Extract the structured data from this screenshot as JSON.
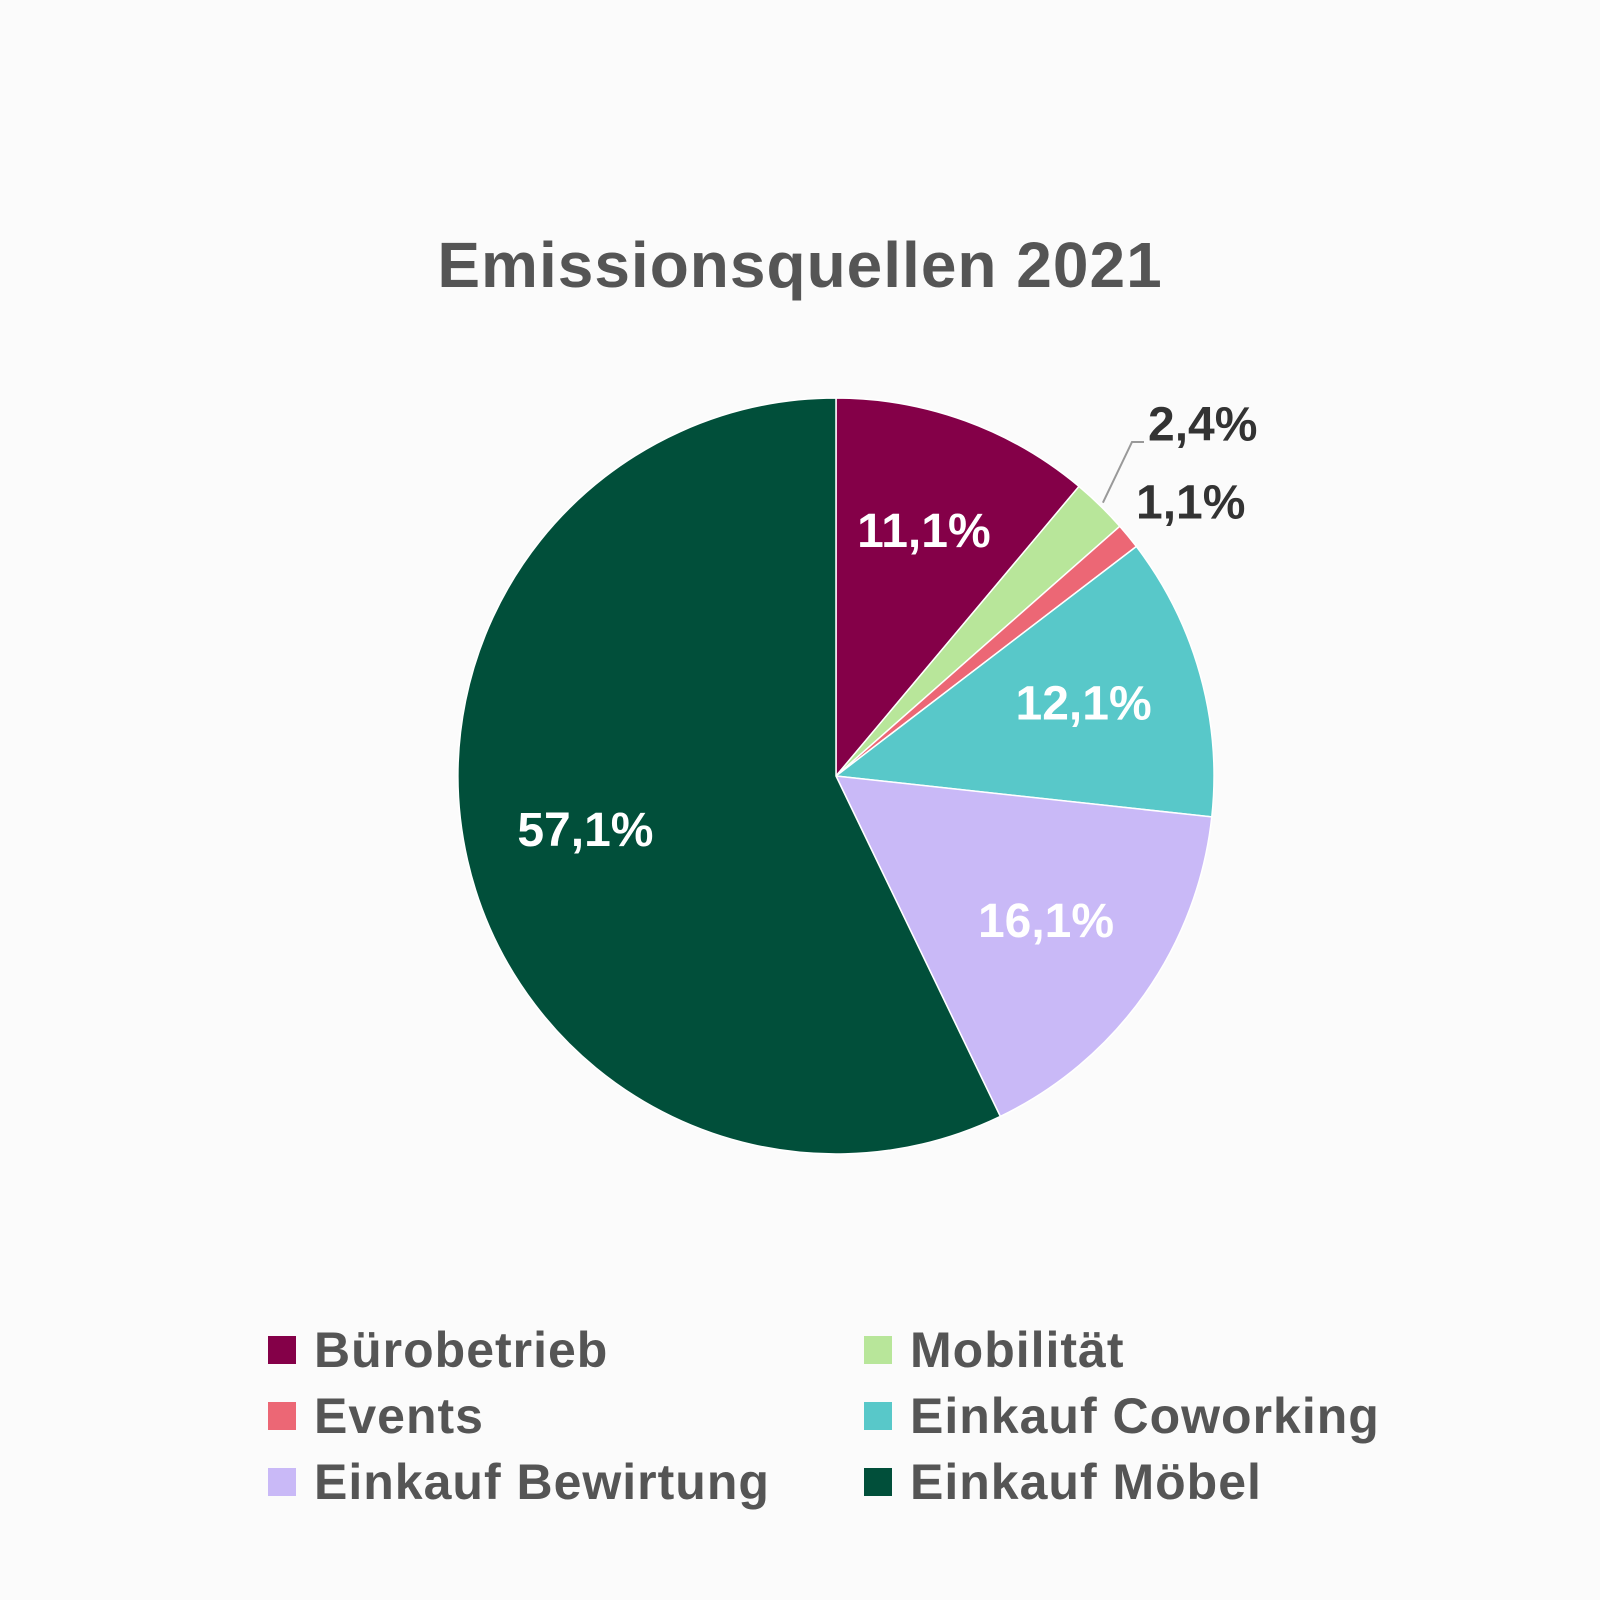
{
  "chart_data": {
    "type": "pie",
    "title": "Emissionsquellen 2021",
    "slices": [
      {
        "label": "Bürobetrieb",
        "value": 11.1,
        "display": "11,1%",
        "color": "#840048",
        "label_color": "#ffffff"
      },
      {
        "label": "Mobilität",
        "value": 2.4,
        "display": "2,4%",
        "color": "#b8e69a",
        "label_color": "#333333"
      },
      {
        "label": "Events",
        "value": 1.1,
        "display": "1,1%",
        "color": "#ec6775",
        "label_color": "#333333"
      },
      {
        "label": "Einkauf Coworking",
        "value": 12.1,
        "display": "12,1%",
        "color": "#58c8c9",
        "label_color": "#ffffff"
      },
      {
        "label": "Einkauf Bewirtung",
        "value": 16.1,
        "display": "16,1%",
        "color": "#c9b9f7",
        "label_color": "#ffffff"
      },
      {
        "label": "Einkauf Möbel",
        "value": 57.1,
        "display": "57,1%",
        "color": "#014f3a",
        "label_color": "#ffffff"
      }
    ],
    "legend_position": "bottom"
  }
}
